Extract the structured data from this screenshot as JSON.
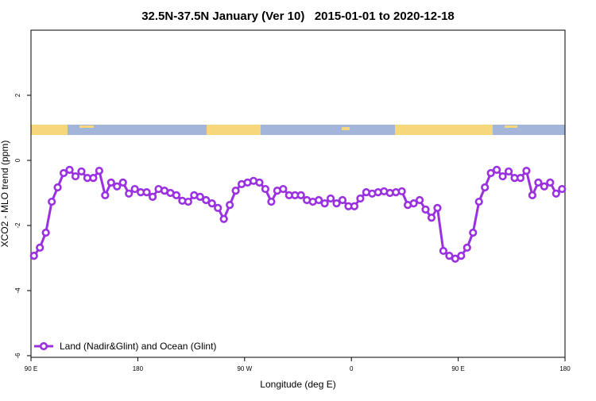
{
  "chart_data": {
    "type": "line",
    "title": "32.5N-37.5N January (Ver 10)   2015-01-01 to 2020-12-18",
    "xlabel": "Longitude (deg E)",
    "ylabel": "XCO2 - MLO trend (ppm)",
    "xlim": [
      90,
      540
    ],
    "ylim": [
      -6.05,
      4
    ],
    "xticks": [
      {
        "value": 90,
        "label": "90 E"
      },
      180,
      {
        "value": 270,
        "label": "90 W"
      },
      {
        "value": 360,
        "label": "0"
      },
      {
        "value": 450,
        "label": "90 E"
      },
      {
        "value": 540,
        "label": "180"
      }
    ],
    "yticks": [
      -6,
      -4,
      -2,
      0,
      2
    ],
    "legend": "bottom-left",
    "series": [
      {
        "name": "Land (Nadir&Glint) and Ocean (Glint)",
        "color": "#9b30e0",
        "x": [
          92.5,
          97.5,
          102.5,
          107.5,
          112.5,
          117.5,
          122.5,
          127.5,
          132.5,
          137.5,
          142.5,
          147.5,
          152.5,
          157.5,
          162.5,
          167.5,
          172.5,
          177.5,
          182.5,
          187.5,
          192.5,
          197.5,
          202.5,
          207.5,
          212.5,
          217.5,
          222.5,
          227.5,
          232.5,
          237.5,
          242.5,
          247.5,
          252.5,
          257.5,
          262.5,
          267.5,
          272.5,
          277.5,
          282.5,
          287.5,
          292.5,
          297.5,
          302.5,
          307.5,
          312.5,
          317.5,
          322.5,
          327.5,
          332.5,
          337.5,
          342.5,
          347.5,
          352.5,
          357.5,
          362.5,
          367.5,
          372.5,
          377.5,
          382.5,
          387.5,
          392.5,
          397.5,
          402.5,
          407.5,
          412.5,
          417.5,
          422.5,
          427.5,
          432.5,
          437.5,
          442.5,
          447.5,
          452.5,
          457.5,
          462.5,
          467.5,
          472.5,
          477.5,
          482.5,
          487.5,
          492.5,
          497.5,
          502.5,
          507.5,
          512.5,
          517.5,
          522.5,
          527.5,
          532.5,
          537.5
        ],
        "values": [
          -2.93,
          -2.68,
          -2.22,
          -1.27,
          -0.83,
          -0.39,
          -0.29,
          -0.49,
          -0.34,
          -0.54,
          -0.54,
          -0.32,
          -1.07,
          -0.68,
          -0.8,
          -0.68,
          -1.02,
          -0.88,
          -0.98,
          -0.98,
          -1.12,
          -0.88,
          -0.93,
          -1.0,
          -1.07,
          -1.24,
          -1.27,
          -1.07,
          -1.12,
          -1.22,
          -1.32,
          -1.46,
          -1.8,
          -1.37,
          -0.93,
          -0.73,
          -0.68,
          -0.63,
          -0.68,
          -0.88,
          -1.27,
          -0.93,
          -0.88,
          -1.07,
          -1.07,
          -1.07,
          -1.22,
          -1.27,
          -1.22,
          -1.32,
          -1.17,
          -1.32,
          -1.22,
          -1.41,
          -1.41,
          -1.17,
          -0.98,
          -1.02,
          -0.98,
          -0.95,
          -1.0,
          -0.98,
          -0.95,
          -1.37,
          -1.32,
          -1.22,
          -1.51,
          -1.76,
          -1.46,
          -2.78,
          -2.93,
          -3.02,
          -2.93,
          -2.68,
          -2.22,
          -1.27,
          -0.83,
          -0.39,
          -0.29,
          -0.49,
          -0.34,
          -0.54,
          -0.54,
          -0.32,
          -1.07,
          -0.68,
          -0.8,
          -0.68,
          -1.02,
          -0.88
        ]
      }
    ]
  }
}
